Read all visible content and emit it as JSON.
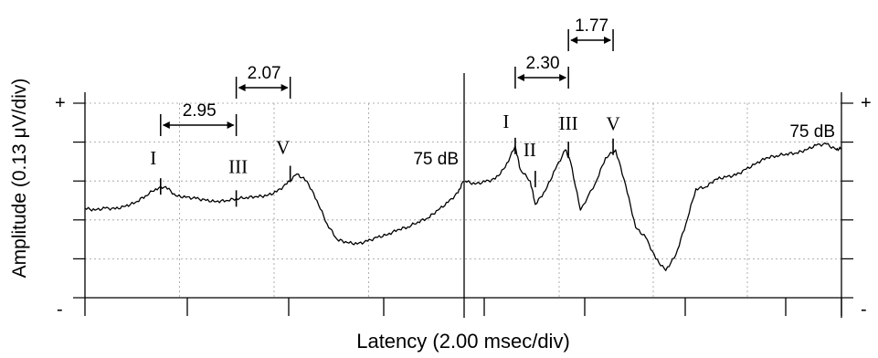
{
  "chart_data": [
    {
      "type": "line",
      "panel": "left",
      "label": "75 dB",
      "xlabel": "Latency (2.00 msec/div)",
      "ylabel": "Amplitude (0.13 μV/div)",
      "xlim": [
        0,
        7.5
      ],
      "ylim": [
        0,
        5
      ],
      "grid": true,
      "y_ticks_major": {
        "top": "+",
        "bottom": "-"
      },
      "series": [
        {
          "x": [
            0,
            0.2,
            0.4,
            0.6,
            0.8,
            1.0,
            1.2,
            1.4,
            1.6,
            1.8,
            2.0,
            2.2,
            2.4,
            2.6,
            2.8,
            3.0,
            3.2,
            3.4,
            3.6,
            3.8,
            4.0,
            4.2,
            4.4,
            4.6,
            4.8,
            5.0,
            5.2,
            5.4,
            5.6,
            5.8,
            6.0,
            6.2,
            6.4,
            6.6,
            6.8,
            7.0,
            7.2,
            7.4,
            7.5
          ],
          "values": [
            2.3,
            2.25,
            2.3,
            2.28,
            2.35,
            2.45,
            2.62,
            2.8,
            2.86,
            2.62,
            2.58,
            2.55,
            2.5,
            2.47,
            2.5,
            2.55,
            2.58,
            2.6,
            2.62,
            2.72,
            2.92,
            3.18,
            3.0,
            2.5,
            1.9,
            1.5,
            1.42,
            1.38,
            1.45,
            1.55,
            1.62,
            1.75,
            1.82,
            1.95,
            2.05,
            2.25,
            2.45,
            2.7,
            3.0
          ]
        }
      ],
      "peaks": [
        {
          "label": "I",
          "x": 1.5,
          "y": 2.86
        },
        {
          "label": "III",
          "x": 3.0,
          "y": 2.55
        },
        {
          "label": "V",
          "x": 4.07,
          "y": 3.18
        }
      ],
      "intervals": [
        {
          "value": "2.95",
          "from": 1.5,
          "to": 3.0
        },
        {
          "value": "2.07",
          "from": 3.0,
          "to": 4.07
        }
      ]
    },
    {
      "type": "line",
      "panel": "right",
      "label": "75 dB",
      "xlim": [
        0,
        7.5
      ],
      "ylim": [
        0,
        5
      ],
      "grid": true,
      "y_ticks_major": {
        "top": "+",
        "bottom": "-"
      },
      "series": [
        {
          "x": [
            0,
            0.2,
            0.4,
            0.6,
            0.8,
            1.0,
            1.1,
            1.3,
            1.4,
            1.6,
            1.8,
            2.0,
            2.1,
            2.3,
            2.6,
            2.8,
            3.0,
            3.2,
            3.4,
            3.6,
            3.8,
            4.0,
            4.2,
            4.4,
            4.6,
            4.8,
            5.0,
            5.2,
            5.4,
            5.6,
            5.8,
            6.0,
            6.2,
            6.4,
            6.6,
            6.8,
            7.0,
            7.2,
            7.4,
            7.5
          ],
          "values": [
            3.0,
            2.92,
            2.98,
            3.05,
            3.35,
            3.9,
            3.3,
            3.0,
            2.4,
            2.75,
            3.3,
            3.8,
            3.5,
            2.25,
            2.95,
            3.6,
            3.8,
            2.9,
            1.8,
            1.55,
            1.0,
            0.7,
            1.1,
            1.9,
            2.8,
            2.85,
            3.05,
            3.1,
            3.15,
            3.3,
            3.45,
            3.6,
            3.65,
            3.7,
            3.72,
            3.8,
            3.92,
            3.95,
            3.8,
            3.85
          ]
        }
      ],
      "peaks": [
        {
          "label": "I",
          "x": 1.0,
          "y": 3.9
        },
        {
          "label": "II",
          "x": 1.4,
          "y": 3.05
        },
        {
          "label": "III",
          "x": 2.06,
          "y": 3.8
        },
        {
          "label": "V",
          "x": 2.95,
          "y": 3.88
        }
      ],
      "intervals": [
        {
          "value": "2.30",
          "from": 1.0,
          "to": 2.06
        },
        {
          "value": "1.77",
          "from": 2.06,
          "to": 2.95
        }
      ]
    }
  ]
}
